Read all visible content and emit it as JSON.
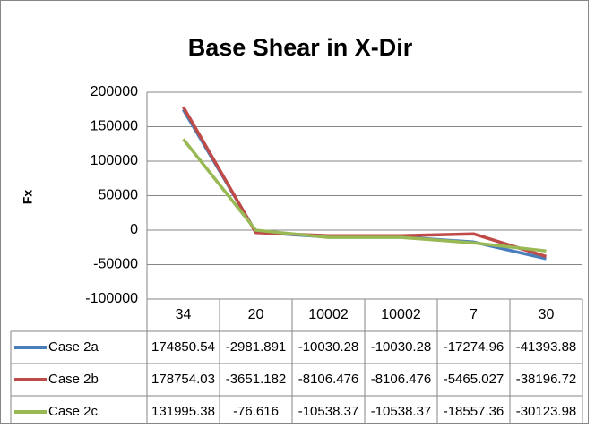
{
  "chart_data": {
    "type": "line",
    "title": "Base Shear in X-Dir",
    "y_label": "Fx",
    "categories": [
      "34",
      "20",
      "10002",
      "10002",
      "7",
      "30"
    ],
    "series": [
      {
        "name": "Case 2a",
        "color": "#4a7ebb",
        "values": [
          174850.54,
          -2981.891,
          -10030.28,
          -10030.28,
          -17274.96,
          -41393.88
        ]
      },
      {
        "name": "Case 2b",
        "color": "#be4b48",
        "values": [
          178754.03,
          -3651.182,
          -8106.476,
          -8106.476,
          -5465.027,
          -38196.72
        ]
      },
      {
        "name": "Case 2c",
        "color": "#98b954",
        "values": [
          131995.38,
          -76.616,
          -10538.37,
          -10538.37,
          -18557.36,
          -30123.98
        ]
      }
    ],
    "ylim": [
      -100000,
      200000
    ],
    "yticks": [
      -100000,
      -50000,
      0,
      50000,
      100000,
      150000,
      200000
    ],
    "grid": true
  }
}
